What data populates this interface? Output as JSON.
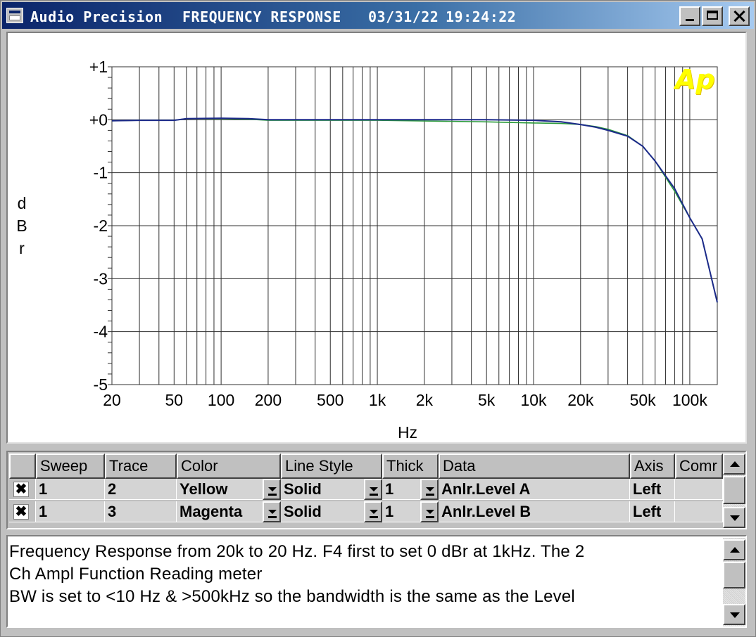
{
  "window": {
    "app_name": "Audio Precision",
    "document_title": "FREQUENCY RESPONSE",
    "date": "03/31/22",
    "time": "19:24:22",
    "controls": {
      "minimize": "minimize-icon",
      "maximize": "maximize-icon",
      "close": "close-icon"
    }
  },
  "logo_text": "Ap",
  "colors": {
    "trace_a": "#2a9a3a",
    "trace_b": "#1c2a8a",
    "grid": "#202020",
    "logo": "#ffff00",
    "titlebar": "#0a246a"
  },
  "chart_data": {
    "type": "line",
    "xlabel": "Hz",
    "ylabel": "dBr",
    "x_scale": "log",
    "xlim": [
      20,
      150000
    ],
    "ylim": [
      -5,
      1
    ],
    "grid": true,
    "y_ticks": [
      1,
      0,
      -1,
      -2,
      -3,
      -4,
      -5
    ],
    "y_tick_labels": [
      "+1",
      "+0",
      "-1",
      "-2",
      "-3",
      "-4",
      "-5"
    ],
    "x_ticks": [
      20,
      50,
      100,
      200,
      500,
      1000,
      2000,
      5000,
      10000,
      20000,
      50000,
      100000
    ],
    "x_tick_labels": [
      "20",
      "50",
      "100",
      "200",
      "500",
      "1k",
      "2k",
      "5k",
      "10k",
      "20k",
      "50k",
      "100k"
    ],
    "series": [
      {
        "color": "#2a9a3a",
        "x": [
          20,
          30,
          50,
          60,
          100,
          150,
          200,
          500,
          1000,
          5000,
          10000,
          15000,
          20000,
          25000,
          30000,
          40000,
          50000,
          60000,
          80000,
          100000,
          120000,
          150000
        ],
        "y": [
          -0.02,
          -0.01,
          -0.01,
          0.02,
          0.02,
          0.01,
          -0.01,
          -0.01,
          -0.01,
          -0.04,
          -0.06,
          -0.07,
          -0.09,
          -0.13,
          -0.18,
          -0.3,
          -0.5,
          -0.78,
          -1.35,
          -1.85,
          -2.25,
          -3.45
        ]
      },
      {
        "color": "#1c2a8a",
        "x": [
          20,
          30,
          50,
          60,
          100,
          150,
          200,
          500,
          1000,
          5000,
          10000,
          15000,
          20000,
          25000,
          30000,
          40000,
          50000,
          60000,
          80000,
          100000,
          120000,
          150000
        ],
        "y": [
          -0.02,
          -0.01,
          -0.01,
          0.02,
          0.03,
          0.02,
          0.0,
          0.0,
          0.0,
          0.0,
          -0.01,
          -0.04,
          -0.09,
          -0.14,
          -0.2,
          -0.31,
          -0.5,
          -0.78,
          -1.3,
          -1.85,
          -2.25,
          -3.45
        ]
      }
    ]
  },
  "table": {
    "headers": [
      "",
      "Sweep",
      "Trace",
      "Color",
      "Line Style",
      "Thick",
      "Data",
      "Axis",
      "Comr"
    ],
    "rows": [
      {
        "checked": "✖",
        "sweep": "1",
        "trace": "2",
        "color": "Yellow",
        "line_style": "Solid",
        "thick": "1",
        "data": "Anlr.Level A",
        "axis": "Left",
        "comment": ""
      },
      {
        "checked": "✖",
        "sweep": "1",
        "trace": "3",
        "color": "Magenta",
        "line_style": "Solid",
        "thick": "1",
        "data": "Anlr.Level B",
        "axis": "Left",
        "comment": ""
      }
    ]
  },
  "comments": {
    "lines": [
      "Frequency Response from 20k to 20 Hz.  F4 first to set 0 dBr at 1kHz.  The 2",
      "Ch Ampl Function Reading meter",
      "BW is set to <10 Hz & >500kHz so the bandwidth is the same as the Level"
    ]
  }
}
